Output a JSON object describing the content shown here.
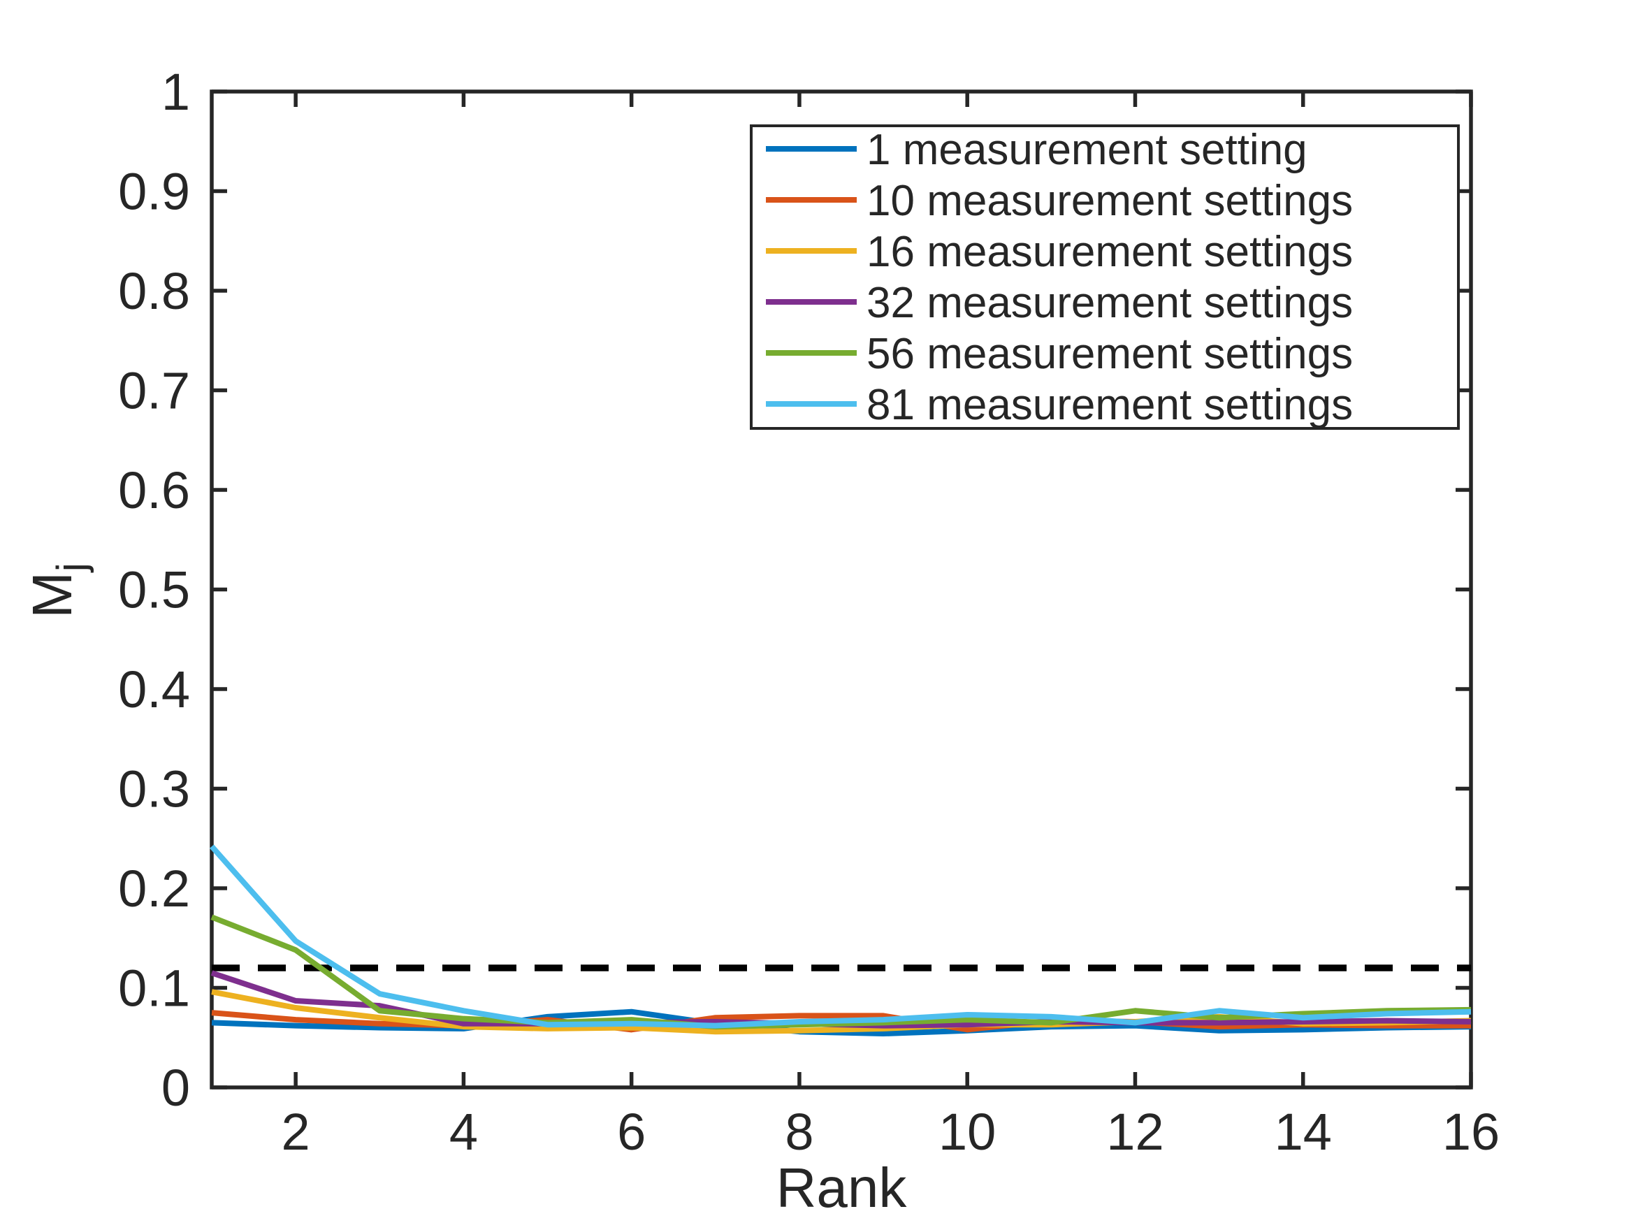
{
  "chart_data": {
    "type": "line",
    "title": "",
    "xlabel": "Rank",
    "ylabel": {
      "main": "M",
      "sub": "j"
    },
    "xlim": [
      1,
      16
    ],
    "ylim": [
      0,
      1
    ],
    "xticks": [
      2,
      4,
      6,
      8,
      10,
      12,
      14,
      16
    ],
    "ytick_values": [
      0,
      0.1,
      0.2,
      0.3,
      0.4,
      0.5,
      0.6,
      0.7,
      0.8,
      0.9,
      1
    ],
    "ytick_labels": [
      "0",
      "0.1",
      "0.2",
      "0.3",
      "0.4",
      "0.5",
      "0.6",
      "0.7",
      "0.8",
      "0.9",
      "1"
    ],
    "grid": false,
    "legend_position": "top-right",
    "x": [
      1,
      2,
      3,
      4,
      5,
      6,
      7,
      8,
      9,
      10,
      11,
      12,
      13,
      14,
      15,
      16
    ],
    "series": [
      {
        "name": "1 measurement setting",
        "color": "#0072BD",
        "values": [
          0.065,
          0.062,
          0.06,
          0.059,
          0.071,
          0.076,
          0.064,
          0.056,
          0.054,
          0.057,
          0.061,
          0.062,
          0.057,
          0.058,
          0.06,
          0.061
        ]
      },
      {
        "name": "10 measurement settings",
        "color": "#D95319",
        "values": [
          0.075,
          0.068,
          0.064,
          0.062,
          0.068,
          0.058,
          0.07,
          0.072,
          0.072,
          0.058,
          0.067,
          0.066,
          0.061,
          0.063,
          0.062,
          0.062
        ]
      },
      {
        "name": "16 measurement settings",
        "color": "#EDB120",
        "values": [
          0.096,
          0.08,
          0.07,
          0.061,
          0.059,
          0.06,
          0.056,
          0.057,
          0.059,
          0.063,
          0.063,
          0.066,
          0.071,
          0.064,
          0.065,
          0.067
        ]
      },
      {
        "name": "32 measurement settings",
        "color": "#7E2F8E",
        "values": [
          0.115,
          0.087,
          0.082,
          0.064,
          0.064,
          0.065,
          0.066,
          0.064,
          0.062,
          0.063,
          0.066,
          0.065,
          0.065,
          0.066,
          0.067,
          0.066
        ]
      },
      {
        "name": "56 measurement settings",
        "color": "#77AC30",
        "values": [
          0.171,
          0.138,
          0.077,
          0.069,
          0.065,
          0.068,
          0.061,
          0.063,
          0.065,
          0.068,
          0.065,
          0.077,
          0.07,
          0.074,
          0.077,
          0.078
        ]
      },
      {
        "name": "81 measurement settings",
        "color": "#4DBEEE",
        "values": [
          0.242,
          0.147,
          0.094,
          0.077,
          0.063,
          0.064,
          0.062,
          0.066,
          0.068,
          0.073,
          0.071,
          0.065,
          0.077,
          0.07,
          0.074,
          0.076
        ]
      }
    ],
    "threshold": {
      "value": 0.12,
      "line_style": "dashed",
      "color": "#000000"
    }
  }
}
